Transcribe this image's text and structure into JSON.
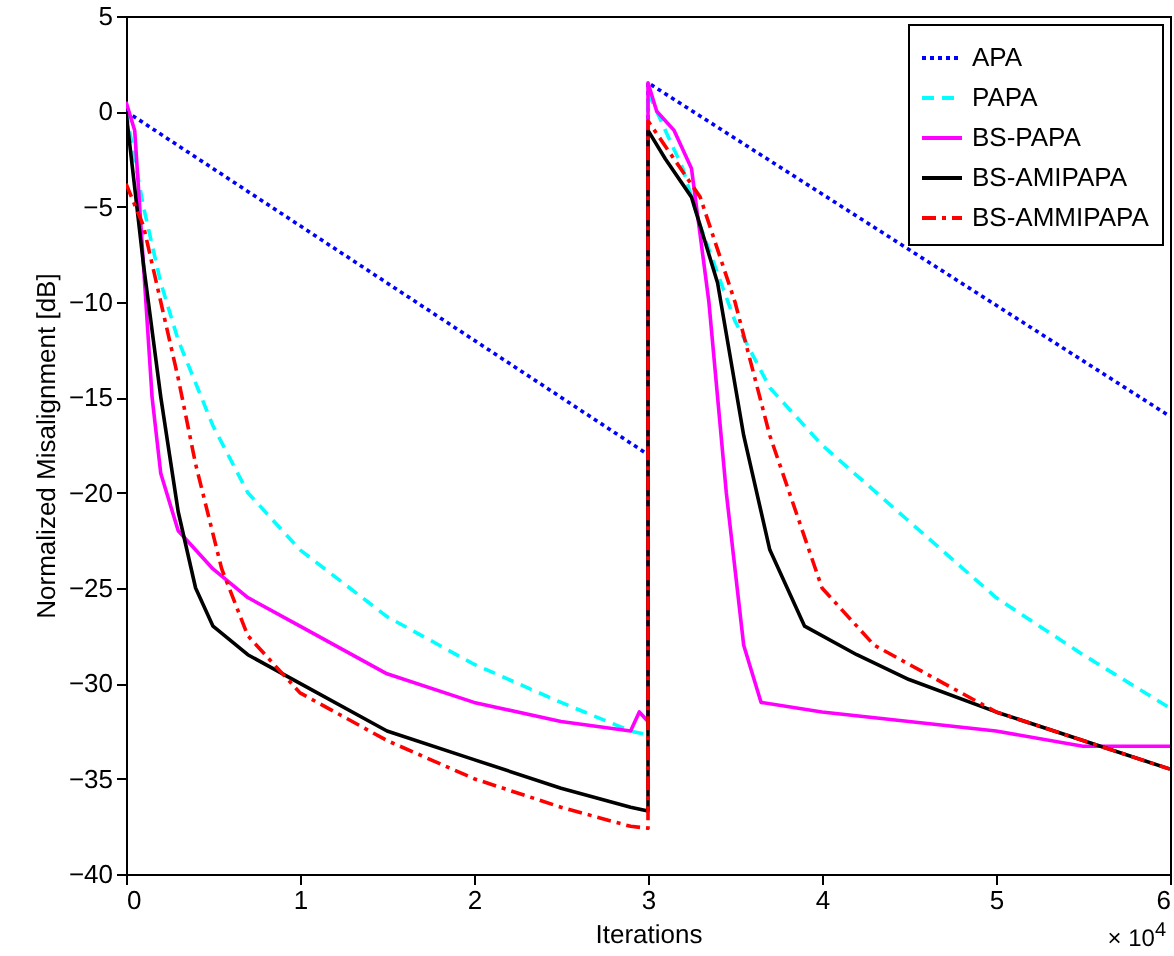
{
  "chart_data": {
    "type": "line",
    "xlabel": "Iterations",
    "ylabel": "Normalized Misalignment [dB]",
    "annotations": [
      "× 10$^{4}$"
    ],
    "xlim": [
      0,
      6
    ],
    "ylim": [
      -40,
      5
    ],
    "xticks": [
      0,
      1,
      2,
      3,
      4,
      5,
      6
    ],
    "yticks": [
      -40,
      -35,
      -30,
      -25,
      -20,
      -15,
      -10,
      -5,
      0,
      5
    ],
    "grid": false,
    "legend": "top right",
    "series": [
      {
        "name": "APA",
        "color": "#0000ff",
        "line_style": "dotted",
        "x": [
          0,
          3,
          3,
          6
        ],
        "values": [
          0,
          -18,
          1.5,
          -16
        ]
      },
      {
        "name": "PAPA",
        "color": "#00ffff",
        "line_style": "dashed",
        "x": [
          0,
          0.1,
          0.2,
          0.3,
          0.5,
          0.7,
          1,
          1.5,
          2,
          2.5,
          2.9,
          3,
          3,
          3.1,
          3.2,
          3.3,
          3.5,
          3.7,
          4,
          4.5,
          5,
          5.5,
          6
        ],
        "values": [
          0,
          -5,
          -9,
          -12,
          -16.5,
          -20,
          -23,
          -26.5,
          -29,
          -31,
          -32.5,
          -32.7,
          1,
          -1,
          -3,
          -6,
          -11,
          -14.5,
          -17.5,
          -21.5,
          -25.5,
          -28.5,
          -31.3
        ]
      },
      {
        "name": "BS-PAPA",
        "color": "#ff00ff",
        "line_style": "solid",
        "x": [
          0,
          0.05,
          0.1,
          0.15,
          0.2,
          0.3,
          0.5,
          0.7,
          1,
          1.5,
          2,
          2.5,
          2.9,
          2.95,
          3,
          3,
          3.05,
          3.15,
          3.25,
          3.35,
          3.45,
          3.55,
          3.65,
          4,
          4.5,
          5,
          5.5,
          6
        ],
        "values": [
          0.5,
          -1,
          -8,
          -15,
          -19,
          -22,
          -24,
          -25.5,
          -27,
          -29.5,
          -31,
          -32,
          -32.5,
          -31.5,
          -32,
          1.5,
          0,
          -1,
          -3,
          -10,
          -20,
          -28,
          -31,
          -31.5,
          -32,
          -32.5,
          -33.3,
          -33.3
        ]
      },
      {
        "name": "BS-AMIPAPA",
        "color": "#000000",
        "line_style": "solid",
        "x": [
          0,
          0.1,
          0.2,
          0.3,
          0.4,
          0.5,
          0.7,
          1,
          1.5,
          2,
          2.5,
          2.9,
          3,
          3,
          3.1,
          3.25,
          3.4,
          3.55,
          3.7,
          3.9,
          4.2,
          4.5,
          5,
          5.5,
          6
        ],
        "values": [
          0,
          -8,
          -15,
          -21,
          -25,
          -27,
          -28.5,
          -30,
          -32.5,
          -34,
          -35.5,
          -36.5,
          -36.7,
          -1,
          -2.5,
          -4.5,
          -9,
          -17,
          -23,
          -27,
          -28.5,
          -29.8,
          -31.5,
          -33,
          -34.5
        ]
      },
      {
        "name": "BS-AMMIPAPA",
        "color": "#ff0000",
        "line_style": "dashdot",
        "x": [
          0,
          0.1,
          0.2,
          0.3,
          0.4,
          0.55,
          0.7,
          1,
          1.5,
          2,
          2.5,
          2.9,
          3,
          3,
          3.15,
          3.3,
          3.5,
          3.7,
          4,
          4.3,
          4.7,
          5,
          5.5,
          6
        ],
        "values": [
          -3.8,
          -6,
          -10,
          -14,
          -18.5,
          -24,
          -27.5,
          -30.5,
          -33,
          -35,
          -36.5,
          -37.5,
          -37.6,
          -0.5,
          -2.5,
          -4.5,
          -10,
          -17,
          -25,
          -28,
          -30,
          -31.5,
          -33,
          -34.5
        ]
      }
    ]
  }
}
